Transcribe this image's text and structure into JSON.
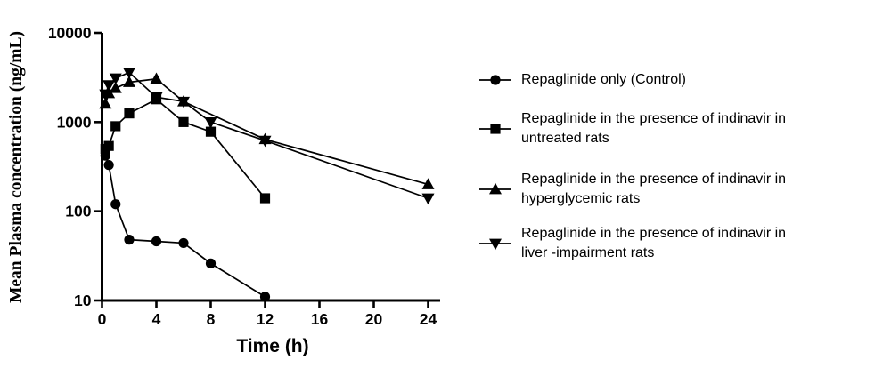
{
  "figure": {
    "background": "#ffffff",
    "ink_color": "#000000"
  },
  "chart_data": {
    "type": "line",
    "title": "",
    "xlabel": "Time (h)",
    "ylabel": "Mean Plasma concentration (ng/mL)",
    "x_scale": "linear",
    "y_scale": "log",
    "xlim": [
      0,
      25
    ],
    "ylim": [
      10,
      10000
    ],
    "x_ticks": [
      0,
      4,
      8,
      12,
      16,
      20,
      24
    ],
    "y_ticks": [
      10,
      100,
      1000,
      10000
    ],
    "grid": false,
    "legend_position": "right",
    "series": [
      {
        "name": "Repaglinide only (Control)",
        "legend_lines": [
          "Repaglinide only (Control)"
        ],
        "marker": "circle",
        "color": "#000000",
        "x": [
          0.25,
          0.5,
          1,
          2,
          4,
          6,
          8,
          12
        ],
        "y": [
          420,
          330,
          120,
          48,
          46,
          44,
          26,
          11
        ]
      },
      {
        "name": "Repaglinide in the presence of indinavir in untreated rats",
        "legend_lines": [
          "Repaglinide in the presence of indinavir in",
          "untreated rats"
        ],
        "marker": "square",
        "color": "#000000",
        "x": [
          0.25,
          0.5,
          1,
          2,
          4,
          6,
          8,
          12
        ],
        "y": [
          500,
          540,
          900,
          1250,
          1800,
          1000,
          780,
          140
        ]
      },
      {
        "name": "Repaglinide in the presence of indinavir in hyperglycemic rats",
        "legend_lines": [
          "Repaglinide in the presence of indinavir in",
          "hyperglycemic rats"
        ],
        "marker": "triangle-up",
        "color": "#000000",
        "x": [
          0.25,
          0.5,
          1,
          2,
          4,
          6,
          12,
          24
        ],
        "y": [
          1600,
          2100,
          2400,
          2800,
          3050,
          1700,
          640,
          200
        ]
      },
      {
        "name": "Repaglinide in the presence of indinavir in liver -impairment rats",
        "legend_lines": [
          "Repaglinide in the presence of indinavir in",
          "liver -impairment rats"
        ],
        "marker": "triangle-down",
        "color": "#000000",
        "x": [
          0.25,
          0.5,
          1,
          2,
          4,
          6,
          8,
          12,
          24
        ],
        "y": [
          2050,
          2600,
          3100,
          3600,
          1900,
          1700,
          1000,
          620,
          140
        ]
      }
    ]
  }
}
